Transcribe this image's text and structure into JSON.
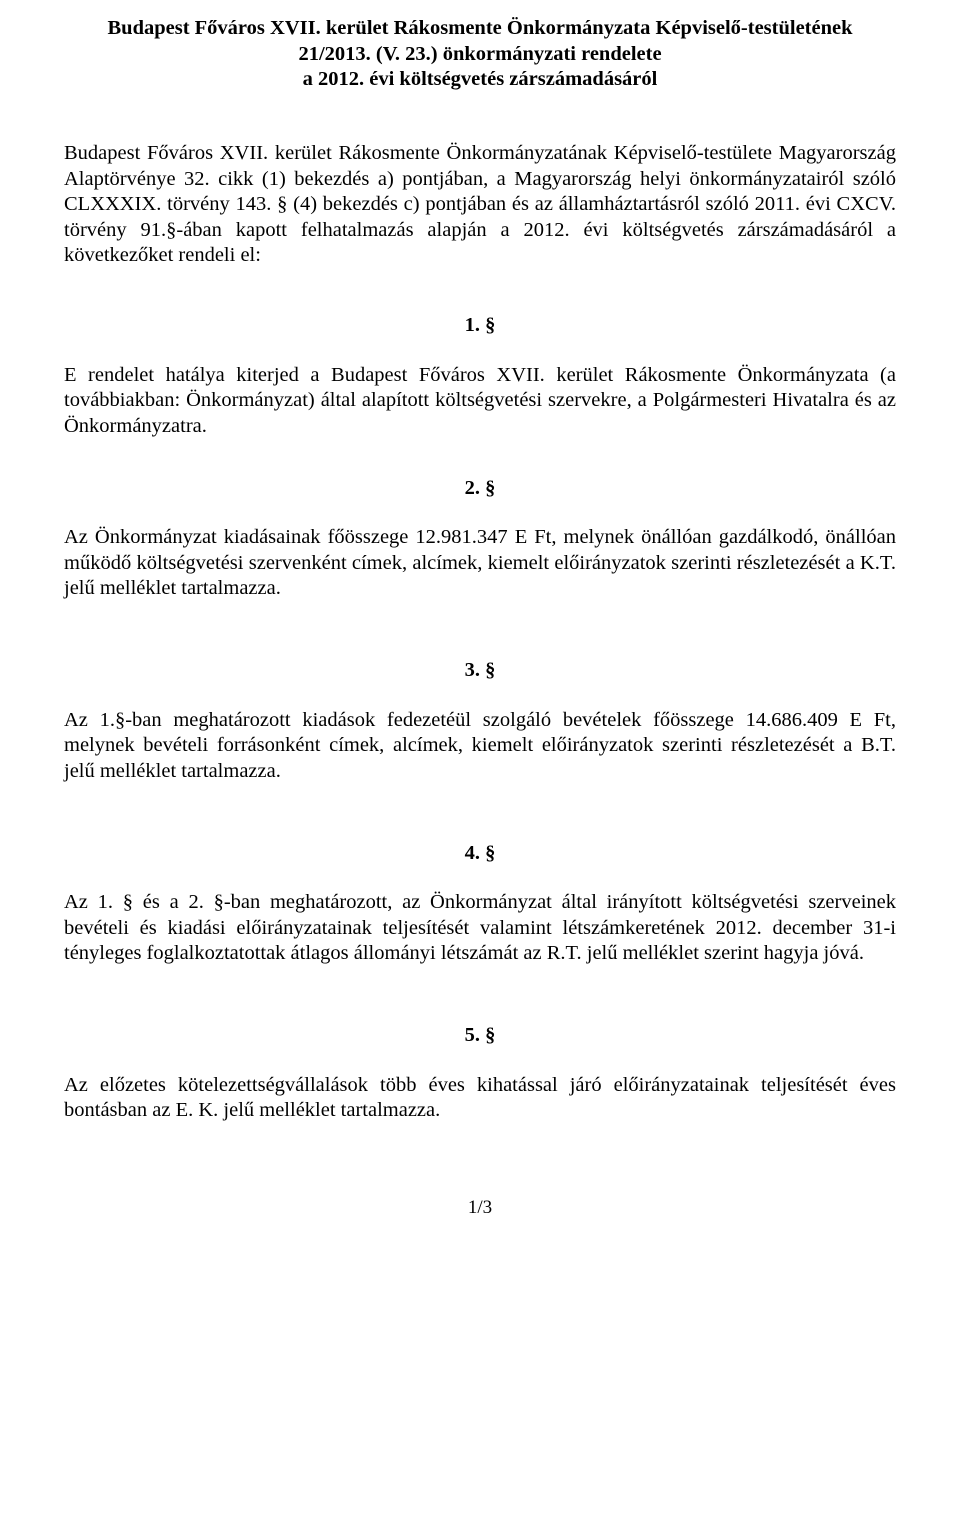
{
  "colors": {
    "background": "#ffffff",
    "text": "#000000"
  },
  "typography": {
    "font_family": "Garamond, Georgia, 'Times New Roman', serif",
    "body_fontsize_pt": 15,
    "title_weight": "bold"
  },
  "title": {
    "line1": "Budapest Főváros XVII. kerület Rákosmente Önkormányzata Képviselő-testületének",
    "line2": "21/2013. (V. 23.) önkormányzati rendelete",
    "line3": "a 2012. évi költségvetés zárszámadásáról"
  },
  "preamble": "Budapest Főváros XVII. kerület Rákosmente Önkormányzatának Képviselő-testülete Magyarország Alaptörvénye 32. cikk (1) bekezdés a) pontjában, a Magyarország helyi önkormányzatairól szóló CLXXXIX. törvény 143. § (4) bekezdés c) pontjában és az államháztartásról szóló 2011. évi CXCV. törvény 91.§-ában kapott felhatalmazás alapján a 2012. évi költségvetés zárszámadásáról a következőket rendeli el:",
  "sections": [
    {
      "num": "1. §",
      "body": "E rendelet hatálya kiterjed a Budapest Főváros XVII. kerület Rákosmente Önkormányzata (a továbbiakban: Önkormányzat) által alapított költségvetési szervekre, a Polgármesteri Hivatalra és az Önkormányzatra."
    },
    {
      "num": "2. §",
      "body": "Az Önkormányzat kiadásainak főösszege 12.981.347 E Ft, melynek önállóan gazdálkodó, önállóan működő költségvetési szervenként címek, alcímek, kiemelt előirányzatok szerinti részletezését a K.T. jelű melléklet tartalmazza."
    },
    {
      "num": "3. §",
      "body": "Az 1.§-ban meghatározott kiadások fedezetéül szolgáló bevételek főösszege 14.686.409 E Ft, melynek bevételi forrásonként címek, alcímek, kiemelt előirányzatok szerinti részletezését a B.T. jelű melléklet tartalmazza."
    },
    {
      "num": "4. §",
      "body": "Az 1. § és a 2. §-ban meghatározott, az Önkormányzat által irányított költségvetési szerveinek bevételi és kiadási előirányzatainak teljesítését valamint létszámkeretének 2012. december 31-i tényleges foglalkoztatottak átlagos állományi létszámát az R.T. jelű melléklet szerint hagyja jóvá."
    },
    {
      "num": "5. §",
      "body": "Az előzetes kötelezettségvállalások több éves kihatással járó előirányzatainak teljesítését éves bontásban az E. K. jelű melléklet tartalmazza."
    }
  ],
  "page_number": "1/3"
}
